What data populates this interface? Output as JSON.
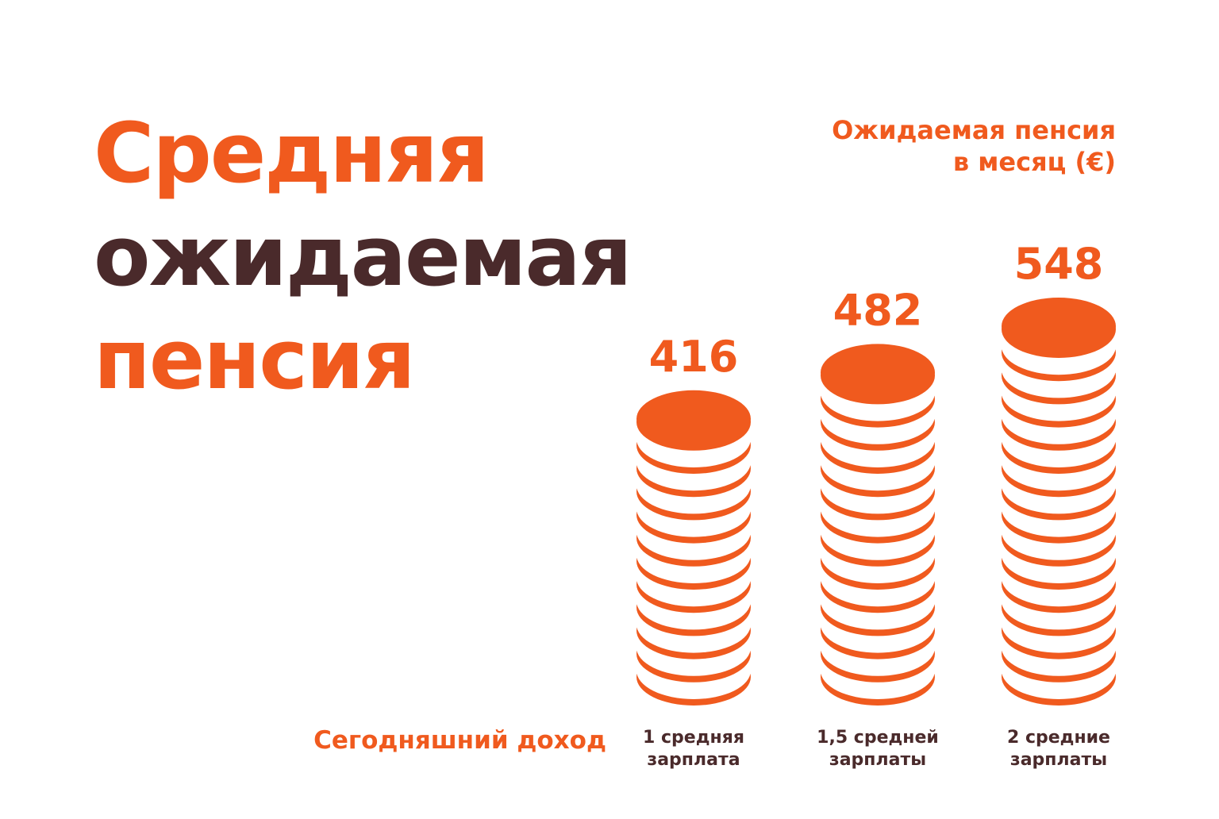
{
  "title": {
    "line1": "Средняя",
    "line2": "ожидаемая",
    "line3": "пенсия"
  },
  "chart_data": {
    "type": "bar",
    "title": "Средняя ожидаемая пенсия",
    "ylabel": "Ожидаемая пенсия в месяц  (€)",
    "ylabel_lines": [
      "Ожидаемая пенсия",
      "в месяц  (€)"
    ],
    "xlabel": "Сегодняшний доход",
    "categories": [
      [
        "1 средняя",
        "зарплата"
      ],
      [
        "1,5 средней",
        "зарплаты"
      ],
      [
        "2 средние",
        "зарплаты"
      ]
    ],
    "values": [
      416,
      482,
      548
    ],
    "coins": [
      12,
      14,
      16
    ],
    "colors": {
      "accent": "#f05a1e",
      "dark": "#4a2a2b",
      "background": "#ffffff"
    }
  }
}
